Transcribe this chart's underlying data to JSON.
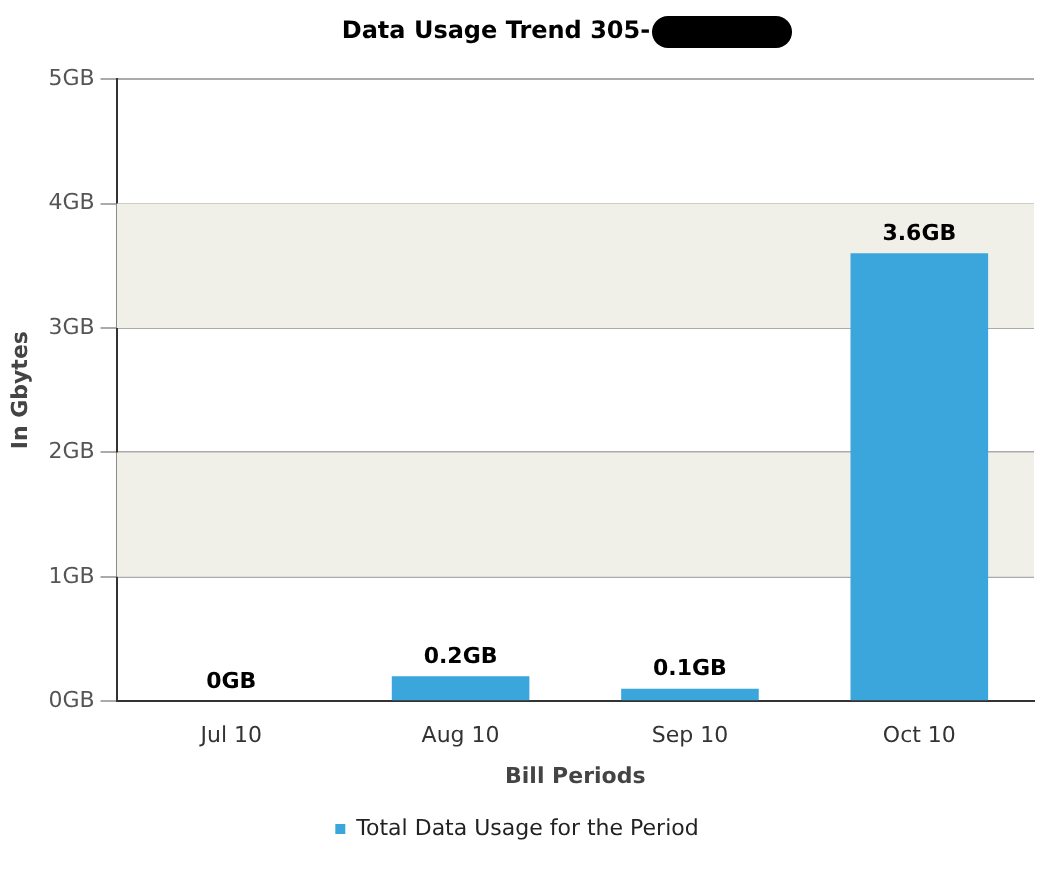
{
  "chart_data": {
    "type": "bar",
    "title": "Data Usage Trend 305-",
    "xlabel": "Bill Periods",
    "ylabel": "In Gbytes",
    "categories": [
      "Jul 10",
      "Aug 10",
      "Sep 10",
      "Oct 10"
    ],
    "series": [
      {
        "name": "Total Data Usage for the Period",
        "color": "#3aa6dc",
        "values": [
          0,
          0.2,
          0.1,
          3.6
        ],
        "value_labels": [
          "0GB",
          "0.2GB",
          "0.1GB",
          "3.6GB"
        ]
      }
    ],
    "ylim": [
      0,
      5
    ],
    "yticks": [
      {
        "value": 0,
        "label": "0GB"
      },
      {
        "value": 1,
        "label": "1GB"
      },
      {
        "value": 2,
        "label": "2GB"
      },
      {
        "value": 3,
        "label": "3GB"
      },
      {
        "value": 4,
        "label": "4GB"
      },
      {
        "value": 5,
        "label": "5GB"
      }
    ],
    "grid": "y",
    "legend": "bottom"
  }
}
